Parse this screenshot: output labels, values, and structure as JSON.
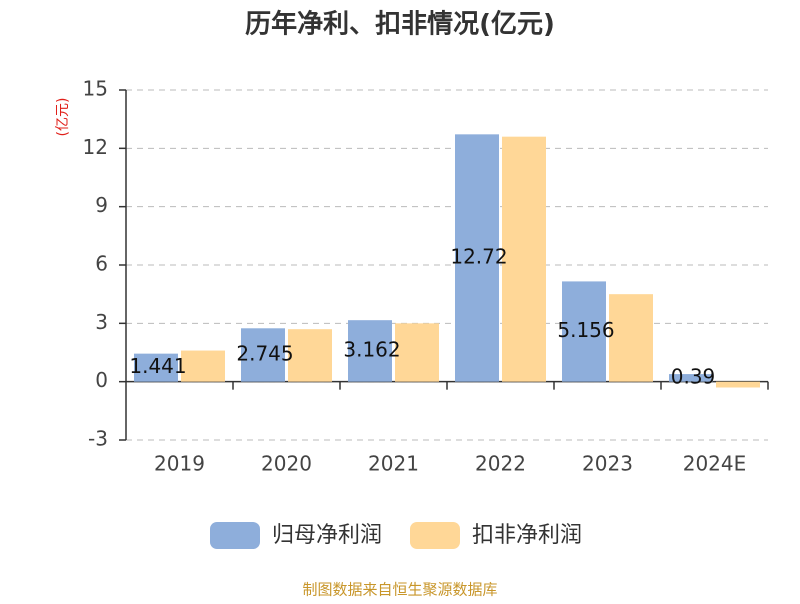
{
  "chart_data": {
    "type": "bar",
    "title": "历年净利、扣非情况(亿元)",
    "ylabel": "(亿元)",
    "source": "制图数据来自恒生聚源数据库",
    "categories": [
      "2019",
      "2020",
      "2021",
      "2022",
      "2023",
      "2024E"
    ],
    "series": [
      {
        "name": "归母净利润",
        "color": "#8eaedb",
        "values": [
          1.441,
          2.745,
          3.162,
          12.72,
          5.156,
          0.39
        ]
      },
      {
        "name": "扣非净利润",
        "color": "#ffd797",
        "values": [
          1.6,
          2.7,
          3.0,
          12.6,
          4.5,
          -0.3
        ]
      }
    ],
    "ylim": [
      -3,
      15
    ],
    "yticks": [
      -3,
      0,
      3,
      6,
      9,
      12,
      15
    ],
    "grid": true
  }
}
